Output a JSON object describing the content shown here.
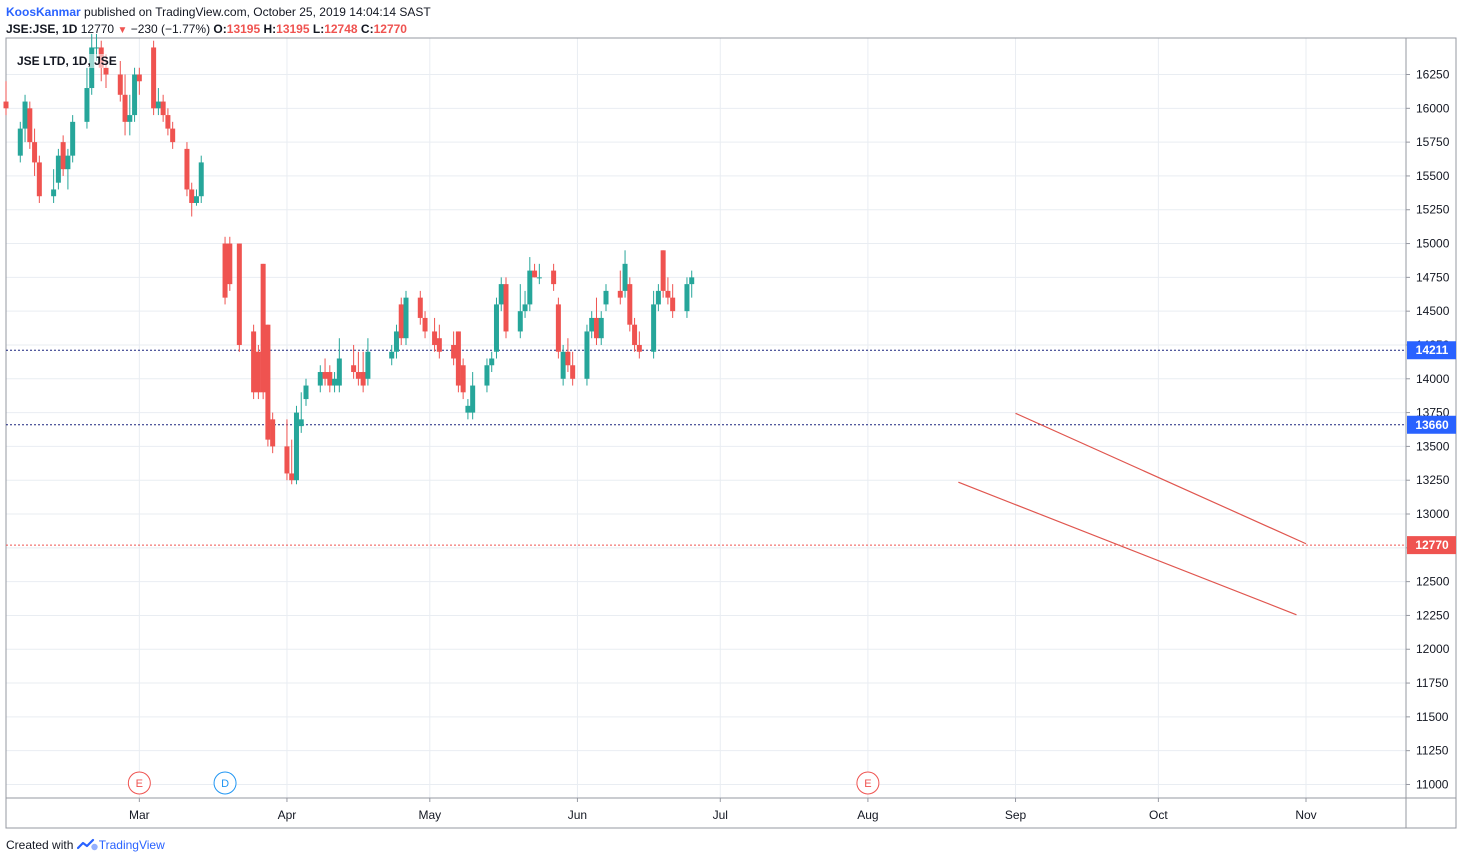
{
  "header": {
    "author": "KoosKanmar",
    "published_text": " published on TradingView.com, October 25, 2019 14:04:14 SAST",
    "symbol": "JSE:JSE, 1D",
    "last": "12770",
    "change": "−230 (−1.77%)",
    "o_label": "O:",
    "o_value": "13195",
    "h_label": "H:",
    "h_value": "13195",
    "l_label": "L:",
    "l_value": "12748",
    "c_label": "C:",
    "c_value": "12770"
  },
  "symbol_label": "JSE LTD, 1D, JSE",
  "footer": {
    "created_with": "Created with",
    "brand": "TradingView"
  },
  "colors": {
    "up": "#26a69a",
    "down": "#ef5350",
    "grid": "#e9edf2",
    "hline": "#1a237e",
    "hline_badge": "#2962ff",
    "last_line": "#ef5350",
    "trend": "#e0564f"
  },
  "chart_data": {
    "type": "candlestick",
    "title": "JSE LTD, 1D, JSE",
    "x_tick_labels": [
      "Mar",
      "Apr",
      "May",
      "Jun",
      "Jul",
      "Aug",
      "Sep",
      "Oct",
      "Nov"
    ],
    "x_tick_dates": [
      "2019-03-01",
      "2019-04-01",
      "2019-05-01",
      "2019-06-01",
      "2019-07-01",
      "2019-08-01",
      "2019-09-01",
      "2019-10-01",
      "2019-11-01"
    ],
    "y_ticks": [
      11000,
      11250,
      11500,
      11750,
      12000,
      12250,
      12500,
      12750,
      13000,
      13250,
      13500,
      13750,
      14000,
      14250,
      14500,
      14750,
      15000,
      15250,
      15500,
      15750,
      16000,
      16250
    ],
    "y_tick_labels": [
      "11000",
      "11250",
      "11500",
      "11750",
      "12000",
      "12250",
      "12500",
      "12750",
      "13000",
      "13250",
      "13500",
      "13750",
      "14000",
      "14250",
      "14500",
      "14750",
      "15000",
      "15250",
      "15500",
      "15750",
      "16000",
      "16250"
    ],
    "x_range": [
      "2019-02-01",
      "2019-11-22"
    ],
    "y_range": [
      10900,
      16520
    ],
    "grid": true,
    "horizontal_lines": [
      {
        "value": 14211,
        "label": "14211"
      },
      {
        "value": 13660,
        "label": "13660"
      }
    ],
    "last_price": {
      "value": 12770,
      "label": "12770"
    },
    "trendlines": [
      {
        "x1": "2019-09-01",
        "y1": 13745,
        "x2": "2019-11-01",
        "y2": 12780
      },
      {
        "x1": "2019-08-20",
        "y1": 13235,
        "x2": "2019-10-30",
        "y2": 12255
      }
    ],
    "event_markers": [
      {
        "date": "2019-03-01",
        "label": "E",
        "color": "#ef5350"
      },
      {
        "date": "2019-03-19",
        "label": "D",
        "color": "#2196f3"
      },
      {
        "date": "2019-08-01",
        "label": "E",
        "color": "#ef5350"
      }
    ],
    "candles": [
      {
        "t": "2019-02-01",
        "o": 16050,
        "h": 16200,
        "l": 15950,
        "c": 16000
      },
      {
        "t": "2019-02-04",
        "o": 15650,
        "h": 15900,
        "l": 15600,
        "c": 15850
      },
      {
        "t": "2019-02-05",
        "o": 15850,
        "h": 16100,
        "l": 15750,
        "c": 16050
      },
      {
        "t": "2019-02-06",
        "o": 16000,
        "h": 16050,
        "l": 15700,
        "c": 15750
      },
      {
        "t": "2019-02-07",
        "o": 15750,
        "h": 15850,
        "l": 15500,
        "c": 15600
      },
      {
        "t": "2019-02-08",
        "o": 15600,
        "h": 15650,
        "l": 15300,
        "c": 15350
      },
      {
        "t": "2019-02-11",
        "o": 15350,
        "h": 15550,
        "l": 15300,
        "c": 15400
      },
      {
        "t": "2019-02-12",
        "o": 15450,
        "h": 15700,
        "l": 15400,
        "c": 15650
      },
      {
        "t": "2019-02-13",
        "o": 15750,
        "h": 15800,
        "l": 15500,
        "c": 15550
      },
      {
        "t": "2019-02-14",
        "o": 15550,
        "h": 15700,
        "l": 15400,
        "c": 15650
      },
      {
        "t": "2019-02-15",
        "o": 15650,
        "h": 15950,
        "l": 15600,
        "c": 15900
      },
      {
        "t": "2019-02-18",
        "o": 15900,
        "h": 16300,
        "l": 15850,
        "c": 16150
      },
      {
        "t": "2019-02-19",
        "o": 16150,
        "h": 16550,
        "l": 16100,
        "c": 16450
      },
      {
        "t": "2019-02-20",
        "o": 16450,
        "h": 16550,
        "l": 16350,
        "c": 16450
      },
      {
        "t": "2019-02-21",
        "o": 16450,
        "h": 16500,
        "l": 16200,
        "c": 16300
      },
      {
        "t": "2019-02-22",
        "o": 16300,
        "h": 16400,
        "l": 16150,
        "c": 16250
      },
      {
        "t": "2019-02-25",
        "o": 16250,
        "h": 16350,
        "l": 16050,
        "c": 16100
      },
      {
        "t": "2019-02-26",
        "o": 16100,
        "h": 16250,
        "l": 15800,
        "c": 15900
      },
      {
        "t": "2019-02-27",
        "o": 15900,
        "h": 16100,
        "l": 15800,
        "c": 15950
      },
      {
        "t": "2019-02-28",
        "o": 15950,
        "h": 16300,
        "l": 15900,
        "c": 16250
      },
      {
        "t": "2019-03-01",
        "o": 16250,
        "h": 16300,
        "l": 16100,
        "c": 16200
      },
      {
        "t": "2019-03-04",
        "o": 16450,
        "h": 16500,
        "l": 15950,
        "c": 16000
      },
      {
        "t": "2019-03-05",
        "o": 16000,
        "h": 16150,
        "l": 15950,
        "c": 16050
      },
      {
        "t": "2019-03-06",
        "o": 16050,
        "h": 16100,
        "l": 15900,
        "c": 15950
      },
      {
        "t": "2019-03-07",
        "o": 15950,
        "h": 16000,
        "l": 15800,
        "c": 15850
      },
      {
        "t": "2019-03-08",
        "o": 15850,
        "h": 15900,
        "l": 15700,
        "c": 15750
      },
      {
        "t": "2019-03-11",
        "o": 15700,
        "h": 15750,
        "l": 15350,
        "c": 15400
      },
      {
        "t": "2019-03-12",
        "o": 15400,
        "h": 15450,
        "l": 15200,
        "c": 15300
      },
      {
        "t": "2019-03-13",
        "o": 15300,
        "h": 15400,
        "l": 15280,
        "c": 15350
      },
      {
        "t": "2019-03-14",
        "o": 15350,
        "h": 15650,
        "l": 15300,
        "c": 15600
      },
      {
        "t": "2019-03-19",
        "o": 15000,
        "h": 15050,
        "l": 14550,
        "c": 14600
      },
      {
        "t": "2019-03-20",
        "o": 15000,
        "h": 15050,
        "l": 14650,
        "c": 14700
      },
      {
        "t": "2019-03-22",
        "o": 15000,
        "h": 15000,
        "l": 14200,
        "c": 14250
      },
      {
        "t": "2019-03-25",
        "o": 14350,
        "h": 14400,
        "l": 13850,
        "c": 13900
      },
      {
        "t": "2019-03-26",
        "o": 14200,
        "h": 14250,
        "l": 13850,
        "c": 13900
      },
      {
        "t": "2019-03-27",
        "o": 14850,
        "h": 14850,
        "l": 13850,
        "c": 13900
      },
      {
        "t": "2019-03-28",
        "o": 14400,
        "h": 14400,
        "l": 13500,
        "c": 13550
      },
      {
        "t": "2019-03-29",
        "o": 13700,
        "h": 13750,
        "l": 13450,
        "c": 13500
      },
      {
        "t": "2019-04-01",
        "o": 13500,
        "h": 13700,
        "l": 13250,
        "c": 13300
      },
      {
        "t": "2019-04-02",
        "o": 13300,
        "h": 13550,
        "l": 13220,
        "c": 13250
      },
      {
        "t": "2019-04-03",
        "o": 13250,
        "h": 13800,
        "l": 13220,
        "c": 13750
      },
      {
        "t": "2019-04-04",
        "o": 13650,
        "h": 13900,
        "l": 13600,
        "c": 13700
      },
      {
        "t": "2019-04-05",
        "o": 13850,
        "h": 14000,
        "l": 13800,
        "c": 13950
      },
      {
        "t": "2019-04-08",
        "o": 13950,
        "h": 14100,
        "l": 13900,
        "c": 14050
      },
      {
        "t": "2019-04-09",
        "o": 14050,
        "h": 14150,
        "l": 13950,
        "c": 14000
      },
      {
        "t": "2019-04-10",
        "o": 14050,
        "h": 14100,
        "l": 13900,
        "c": 13950
      },
      {
        "t": "2019-04-11",
        "o": 13950,
        "h": 14050,
        "l": 13900,
        "c": 14000
      },
      {
        "t": "2019-04-12",
        "o": 13950,
        "h": 14300,
        "l": 13900,
        "c": 14150
      },
      {
        "t": "2019-04-15",
        "o": 14100,
        "h": 14250,
        "l": 14000,
        "c": 14050
      },
      {
        "t": "2019-04-16",
        "o": 14050,
        "h": 14200,
        "l": 13950,
        "c": 14000
      },
      {
        "t": "2019-04-17",
        "o": 14050,
        "h": 14200,
        "l": 13900,
        "c": 13950
      },
      {
        "t": "2019-04-18",
        "o": 14000,
        "h": 14300,
        "l": 13950,
        "c": 14200
      },
      {
        "t": "2019-04-23",
        "o": 14150,
        "h": 14250,
        "l": 14100,
        "c": 14200
      },
      {
        "t": "2019-04-24",
        "o": 14200,
        "h": 14400,
        "l": 14150,
        "c": 14350
      },
      {
        "t": "2019-04-25",
        "o": 14550,
        "h": 14600,
        "l": 14250,
        "c": 14300
      },
      {
        "t": "2019-04-26",
        "o": 14300,
        "h": 14650,
        "l": 14250,
        "c": 14600
      },
      {
        "t": "2019-04-29",
        "o": 14600,
        "h": 14650,
        "l": 14400,
        "c": 14450
      },
      {
        "t": "2019-04-30",
        "o": 14450,
        "h": 14500,
        "l": 14300,
        "c": 14350
      },
      {
        "t": "2019-05-02",
        "o": 14350,
        "h": 14450,
        "l": 14200,
        "c": 14250
      },
      {
        "t": "2019-05-03",
        "o": 14300,
        "h": 14400,
        "l": 14150,
        "c": 14200
      },
      {
        "t": "2019-05-06",
        "o": 14250,
        "h": 14350,
        "l": 14100,
        "c": 14150
      },
      {
        "t": "2019-05-07",
        "o": 14350,
        "h": 14350,
        "l": 13900,
        "c": 13950
      },
      {
        "t": "2019-05-08",
        "o": 14100,
        "h": 14150,
        "l": 13850,
        "c": 13900
      },
      {
        "t": "2019-05-09",
        "o": 13750,
        "h": 13850,
        "l": 13700,
        "c": 13800
      },
      {
        "t": "2019-05-10",
        "o": 13750,
        "h": 14050,
        "l": 13700,
        "c": 13950
      },
      {
        "t": "2019-05-13",
        "o": 13950,
        "h": 14150,
        "l": 13900,
        "c": 14100
      },
      {
        "t": "2019-05-14",
        "o": 14100,
        "h": 14200,
        "l": 14050,
        "c": 14150
      },
      {
        "t": "2019-05-15",
        "o": 14200,
        "h": 14600,
        "l": 14150,
        "c": 14550
      },
      {
        "t": "2019-05-16",
        "o": 14550,
        "h": 14750,
        "l": 14500,
        "c": 14700
      },
      {
        "t": "2019-05-17",
        "o": 14700,
        "h": 14750,
        "l": 14300,
        "c": 14350
      },
      {
        "t": "2019-05-20",
        "o": 14350,
        "h": 14700,
        "l": 14300,
        "c": 14500
      },
      {
        "t": "2019-05-21",
        "o": 14500,
        "h": 14650,
        "l": 14450,
        "c": 14550
      },
      {
        "t": "2019-05-22",
        "o": 14550,
        "h": 14900,
        "l": 14500,
        "c": 14800
      },
      {
        "t": "2019-05-23",
        "o": 14800,
        "h": 14850,
        "l": 14750,
        "c": 14750
      },
      {
        "t": "2019-05-24",
        "o": 14750,
        "h": 14850,
        "l": 14700,
        "c": 14750
      },
      {
        "t": "2019-05-27",
        "o": 14800,
        "h": 14850,
        "l": 14650,
        "c": 14700
      },
      {
        "t": "2019-05-28",
        "o": 14550,
        "h": 14600,
        "l": 14150,
        "c": 14200
      },
      {
        "t": "2019-05-29",
        "o": 14000,
        "h": 14250,
        "l": 13950,
        "c": 14200
      },
      {
        "t": "2019-05-30",
        "o": 14200,
        "h": 14300,
        "l": 14050,
        "c": 14100
      },
      {
        "t": "2019-05-31",
        "o": 14100,
        "h": 14200,
        "l": 13950,
        "c": 14000
      },
      {
        "t": "2019-06-03",
        "o": 14000,
        "h": 14400,
        "l": 13950,
        "c": 14350
      },
      {
        "t": "2019-06-04",
        "o": 14350,
        "h": 14500,
        "l": 14300,
        "c": 14450
      },
      {
        "t": "2019-06-05",
        "o": 14450,
        "h": 14600,
        "l": 14250,
        "c": 14300
      },
      {
        "t": "2019-06-06",
        "o": 14300,
        "h": 14500,
        "l": 14250,
        "c": 14450
      },
      {
        "t": "2019-06-07",
        "o": 14550,
        "h": 14700,
        "l": 14500,
        "c": 14650
      },
      {
        "t": "2019-06-10",
        "o": 14650,
        "h": 14800,
        "l": 14550,
        "c": 14600
      },
      {
        "t": "2019-06-11",
        "o": 14650,
        "h": 14950,
        "l": 14600,
        "c": 14850
      },
      {
        "t": "2019-06-12",
        "o": 14700,
        "h": 14750,
        "l": 14350,
        "c": 14400
      },
      {
        "t": "2019-06-13",
        "o": 14400,
        "h": 14450,
        "l": 14200,
        "c": 14250
      },
      {
        "t": "2019-06-14",
        "o": 14250,
        "h": 14350,
        "l": 14150,
        "c": 14200
      },
      {
        "t": "2019-06-17",
        "o": 14200,
        "h": 14650,
        "l": 14150,
        "c": 14550
      },
      {
        "t": "2019-06-18",
        "o": 14550,
        "h": 14700,
        "l": 14500,
        "c": 14650
      },
      {
        "t": "2019-06-19",
        "o": 14950,
        "h": 14950,
        "l": 14600,
        "c": 14650
      },
      {
        "t": "2019-06-20",
        "o": 14650,
        "h": 14750,
        "l": 14550,
        "c": 14600
      },
      {
        "t": "2019-06-21",
        "o": 14600,
        "h": 14700,
        "l": 14450,
        "c": 14500
      },
      {
        "t": "2019-06-24",
        "o": 14500,
        "h": 14750,
        "l": 14450,
        "c": 14700
      },
      {
        "t": "2019-06-25",
        "o": 14700,
        "h": 14800,
        "l": 14600,
        "c": 14750
      }
    ]
  }
}
